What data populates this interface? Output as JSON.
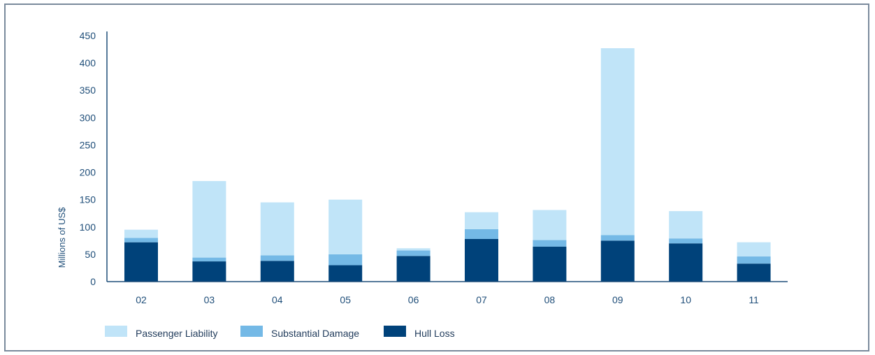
{
  "chart_data": {
    "type": "bar",
    "stacked": true,
    "categories": [
      "02",
      "03",
      "04",
      "05",
      "06",
      "07",
      "08",
      "09",
      "10",
      "11"
    ],
    "series": [
      {
        "name": "Hull Loss",
        "color": "#00427a",
        "values": [
          72,
          37,
          38,
          30,
          47,
          78,
          64,
          75,
          70,
          33
        ]
      },
      {
        "name": "Substantial Damage",
        "color": "#74b9e6",
        "values": [
          8,
          7,
          10,
          20,
          10,
          18,
          12,
          10,
          9,
          13
        ]
      },
      {
        "name": "Passenger Liability",
        "color": "#c0e4f8",
        "values": [
          15,
          140,
          97,
          100,
          4,
          31,
          55,
          342,
          50,
          26
        ]
      }
    ],
    "ylabel": "Millions of US$",
    "xlabel": "",
    "ylim": [
      0,
      450
    ],
    "yticks": [
      0,
      50,
      100,
      150,
      200,
      250,
      300,
      350,
      400,
      450
    ],
    "grid": false,
    "legend_position": "bottom-left"
  }
}
